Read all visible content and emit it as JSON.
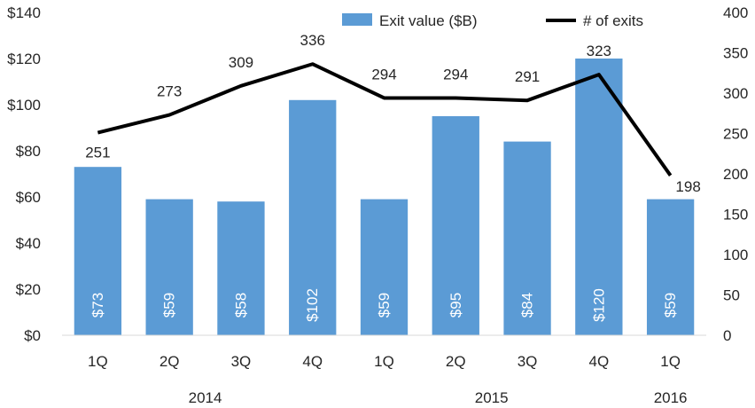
{
  "chart_data": {
    "type": "bar",
    "categories": [
      "1Q",
      "2Q",
      "3Q",
      "4Q",
      "1Q",
      "2Q",
      "3Q",
      "4Q",
      "1Q"
    ],
    "groups": [
      {
        "label": "2014",
        "start": 0,
        "end": 3
      },
      {
        "label": "2015",
        "start": 4,
        "end": 7
      },
      {
        "label": "2016",
        "start": 8,
        "end": 8
      }
    ],
    "series": [
      {
        "name": "Exit value ($B)",
        "type": "bar",
        "axis": "left",
        "color": "#5b9bd5",
        "values": [
          73,
          59,
          58,
          102,
          59,
          95,
          84,
          120,
          59
        ],
        "labels": [
          "$73",
          "$59",
          "$58",
          "$102",
          "$59",
          "$95",
          "$84",
          "$120",
          "$59"
        ]
      },
      {
        "name": "# of exits",
        "type": "line",
        "axis": "right",
        "color": "#000000",
        "values": [
          251,
          273,
          309,
          336,
          294,
          294,
          291,
          323,
          198
        ],
        "labels": [
          "251",
          "273",
          "309",
          "336",
          "294",
          "294",
          "291",
          "323",
          "198"
        ]
      }
    ],
    "y_left": {
      "range": [
        0,
        140
      ],
      "ticks": [
        0,
        20,
        40,
        60,
        80,
        100,
        120,
        140
      ],
      "tick_labels": [
        "$0",
        "$20",
        "$40",
        "$60",
        "$80",
        "$100",
        "$120",
        "$140"
      ]
    },
    "y_right": {
      "range": [
        0,
        400
      ],
      "ticks": [
        0,
        50,
        100,
        150,
        200,
        250,
        300,
        350,
        400
      ],
      "tick_labels": [
        "0",
        "50",
        "100",
        "150",
        "200",
        "250",
        "300",
        "350",
        "400"
      ]
    },
    "title": "",
    "xlabel": "",
    "ylabel": "",
    "grid": false,
    "legend_position": "top"
  }
}
